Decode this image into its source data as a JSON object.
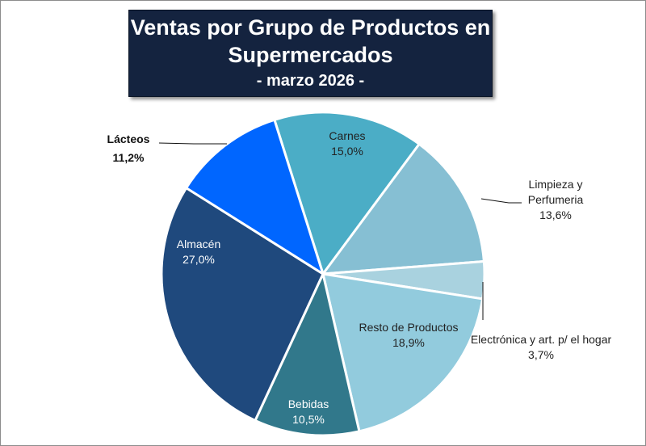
{
  "chart_data": {
    "type": "pie",
    "title": "Ventas por Grupo de Productos en Supermercados",
    "title_lines": [
      "Ventas por Grupo de Productos en",
      "Supermercados"
    ],
    "subtitle": "- marzo 2026 -",
    "slices": [
      {
        "name": "Carnes",
        "label_lines": [
          "Carnes"
        ],
        "value": 15.0,
        "value_label": "15,0%",
        "color": "#4badc6"
      },
      {
        "name": "Limpieza y Perfumeria",
        "label_lines": [
          "Limpieza y",
          "Perfumeria"
        ],
        "value": 13.6,
        "value_label": "13,6%",
        "color": "#86bfd3"
      },
      {
        "name": "Electrónica y art. p/ el hogar",
        "label_lines": [
          "Electrónica y art. p/ el hogar"
        ],
        "value": 3.7,
        "value_label": "3,7%",
        "color": "#a9d2df"
      },
      {
        "name": "Resto de Productos",
        "label_lines": [
          "Resto de Productos"
        ],
        "value": 18.9,
        "value_label": "18,9%",
        "color": "#92cbdd"
      },
      {
        "name": "Bebidas",
        "label_lines": [
          "Bebidas"
        ],
        "value": 10.5,
        "value_label": "10,5%",
        "color": "#31788b"
      },
      {
        "name": "Almacén",
        "label_lines": [
          "Almacén"
        ],
        "value": 27.0,
        "value_label": "27,0%",
        "color": "#1f497d"
      },
      {
        "name": "Lácteos",
        "label_lines": [
          "Lácteos"
        ],
        "value": 11.2,
        "value_label": "11,2%",
        "color": "#0066ff"
      }
    ]
  }
}
